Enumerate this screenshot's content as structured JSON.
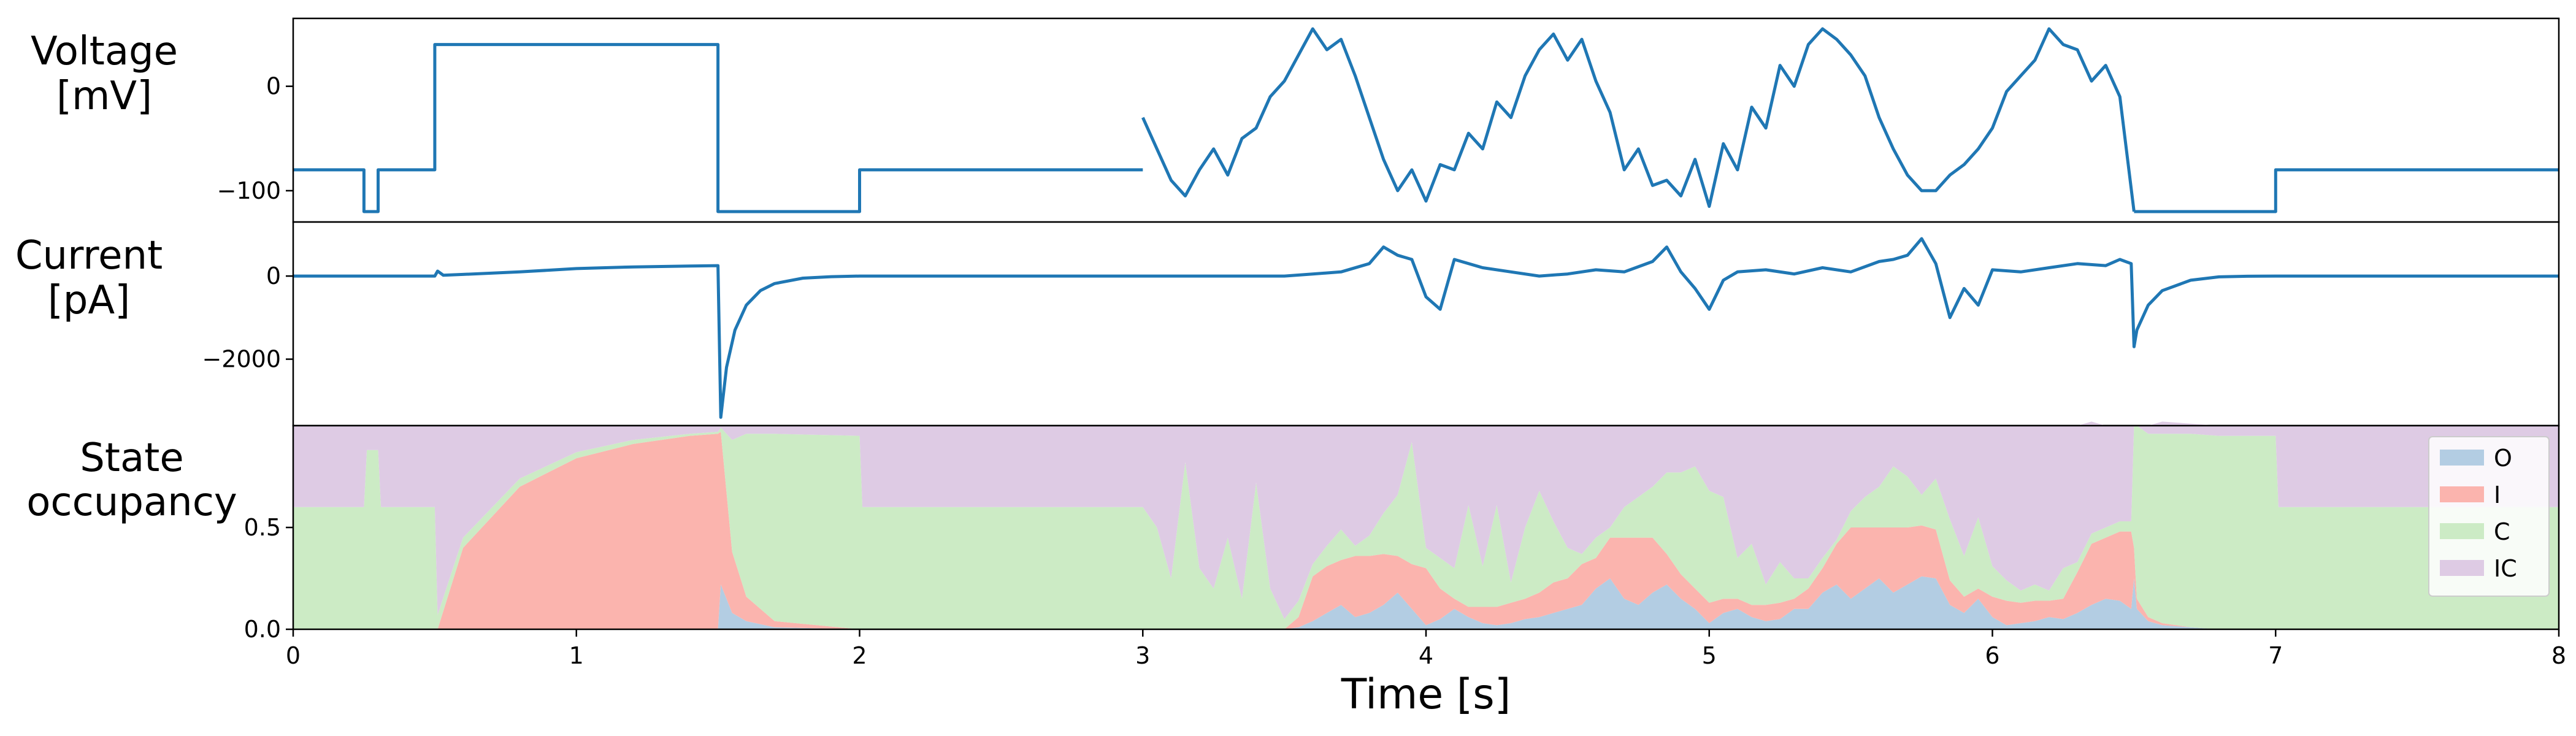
{
  "figure": {
    "xlabel": "Time [s]",
    "colors": {
      "line": "#1f77b4",
      "O": "#b3cde3",
      "I": "#fbb4ae",
      "C": "#ccebc5",
      "IC": "#decbe4"
    }
  },
  "chart_data": [
    {
      "type": "line",
      "panel": "voltage",
      "ylabel_line1": "Voltage",
      "ylabel_line2": "[mV]",
      "xlim": [
        0,
        8
      ],
      "ylim": [
        -130,
        65
      ],
      "yticks": [
        -100,
        0
      ],
      "ytick_labels": [
        "−100",
        "0"
      ],
      "grid": false,
      "series": [
        {
          "x": [
            0,
            0.25,
            0.25,
            0.3,
            0.3,
            0.5,
            0.5,
            1.5,
            1.5,
            2.0,
            2.0,
            3.0
          ],
          "y": [
            -80,
            -80,
            -120,
            -120,
            -80,
            -80,
            40,
            40,
            -120,
            -120,
            -80,
            -80
          ]
        },
        {
          "x": [
            3.0,
            3.05,
            3.1,
            3.15,
            3.2,
            3.25,
            3.3,
            3.35,
            3.4,
            3.45,
            3.5,
            3.55,
            3.6,
            3.65,
            3.7,
            3.75,
            3.8,
            3.85,
            3.9,
            3.95,
            4.0,
            4.05,
            4.1,
            4.15,
            4.2,
            4.25,
            4.3,
            4.35,
            4.4,
            4.45,
            4.5,
            4.55,
            4.6,
            4.65,
            4.7,
            4.75,
            4.8,
            4.85,
            4.9,
            4.95,
            5.0,
            5.05,
            5.1,
            5.15,
            5.2,
            5.25,
            5.3,
            5.35,
            5.4,
            5.45,
            5.5,
            5.55,
            5.6,
            5.65,
            5.7,
            5.75,
            5.8,
            5.85,
            5.9,
            5.95,
            6.0,
            6.05,
            6.1,
            6.15,
            6.2,
            6.25,
            6.3,
            6.35,
            6.4,
            6.45,
            6.5
          ],
          "y": [
            -30,
            -60,
            -90,
            -105,
            -80,
            -60,
            -85,
            -50,
            -40,
            -10,
            5,
            30,
            55,
            35,
            45,
            10,
            -30,
            -70,
            -100,
            -80,
            -110,
            -75,
            -80,
            -45,
            -60,
            -15,
            -30,
            10,
            35,
            50,
            25,
            45,
            5,
            -25,
            -80,
            -60,
            -95,
            -90,
            -105,
            -70,
            -115,
            -55,
            -80,
            -20,
            -40,
            20,
            0,
            40,
            55,
            45,
            30,
            10,
            -30,
            -60,
            -85,
            -100,
            -100,
            -85,
            -75,
            -60,
            -40,
            -5,
            10,
            25,
            55,
            40,
            35,
            5,
            20,
            -10,
            -120
          ]
        },
        {
          "x": [
            6.5,
            7.0,
            7.0,
            8.0
          ],
          "y": [
            -120,
            -120,
            -80,
            -80
          ]
        }
      ]
    },
    {
      "type": "line",
      "panel": "current",
      "ylabel_line1": "Current",
      "ylabel_line2": "[pA]",
      "xlim": [
        0,
        8
      ],
      "ylim": [
        -3600,
        1300
      ],
      "yticks": [
        -2000,
        0
      ],
      "ytick_labels": [
        "−2000",
        "0"
      ],
      "grid": false,
      "series": [
        {
          "x": [
            0,
            0.5,
            0.51,
            0.53,
            0.6,
            0.8,
            1.0,
            1.2,
            1.4,
            1.5,
            1.51,
            1.53,
            1.56,
            1.6,
            1.65,
            1.7,
            1.8,
            1.9,
            2.0,
            3.0,
            3.5,
            3.6,
            3.7,
            3.8,
            3.85,
            3.9,
            3.95,
            4.0,
            4.05,
            4.1,
            4.2,
            4.3,
            4.4,
            4.5,
            4.6,
            4.7,
            4.8,
            4.85,
            4.9,
            4.95,
            5.0,
            5.05,
            5.1,
            5.2,
            5.3,
            5.4,
            5.5,
            5.6,
            5.65,
            5.7,
            5.75,
            5.8,
            5.85,
            5.9,
            5.95,
            6.0,
            6.1,
            6.2,
            6.3,
            6.4,
            6.45,
            6.49,
            6.5,
            6.51,
            6.55,
            6.6,
            6.7,
            6.8,
            6.9,
            7.0,
            8.0
          ],
          "y": [
            0,
            0,
            120,
            20,
            40,
            100,
            180,
            220,
            240,
            250,
            -3400,
            -2200,
            -1300,
            -700,
            -350,
            -180,
            -50,
            -15,
            0,
            0,
            0,
            50,
            100,
            300,
            700,
            500,
            400,
            -500,
            -800,
            400,
            200,
            100,
            0,
            50,
            150,
            100,
            350,
            700,
            100,
            -300,
            -800,
            -100,
            100,
            150,
            50,
            200,
            100,
            350,
            400,
            500,
            900,
            300,
            -1000,
            -300,
            -700,
            150,
            100,
            200,
            300,
            250,
            400,
            300,
            -1700,
            -1300,
            -700,
            -350,
            -100,
            -20,
            -5,
            0,
            0
          ]
        }
      ]
    },
    {
      "type": "area",
      "panel": "state",
      "ylabel_line1": "State",
      "ylabel_line2": "occupancy",
      "xlim": [
        0,
        8
      ],
      "ylim": [
        0,
        1
      ],
      "yticks": [
        0.0,
        0.5
      ],
      "ytick_labels": [
        "0.0",
        "0.5"
      ],
      "xticks": [
        0,
        1,
        2,
        3,
        4,
        5,
        6,
        7,
        8
      ],
      "xtick_labels": [
        "0",
        "1",
        "2",
        "3",
        "4",
        "5",
        "6",
        "7",
        "8"
      ],
      "stacked": true,
      "grid": false,
      "legend_position": "top-right",
      "x": [
        0,
        0.25,
        0.26,
        0.3,
        0.31,
        0.5,
        0.51,
        0.6,
        0.8,
        1.0,
        1.2,
        1.4,
        1.5,
        1.51,
        1.55,
        1.6,
        1.7,
        2.0,
        2.01,
        3.0,
        3.05,
        3.1,
        3.15,
        3.2,
        3.25,
        3.3,
        3.35,
        3.4,
        3.45,
        3.5,
        3.55,
        3.6,
        3.65,
        3.7,
        3.75,
        3.8,
        3.85,
        3.9,
        3.95,
        4.0,
        4.05,
        4.1,
        4.15,
        4.2,
        4.25,
        4.3,
        4.35,
        4.4,
        4.45,
        4.5,
        4.55,
        4.6,
        4.65,
        4.7,
        4.75,
        4.8,
        4.85,
        4.9,
        4.95,
        5.0,
        5.05,
        5.1,
        5.15,
        5.2,
        5.25,
        5.3,
        5.35,
        5.4,
        5.45,
        5.5,
        5.55,
        5.6,
        5.65,
        5.7,
        5.75,
        5.8,
        5.85,
        5.9,
        5.95,
        6.0,
        6.05,
        6.1,
        6.15,
        6.2,
        6.25,
        6.3,
        6.35,
        6.4,
        6.45,
        6.49,
        6.5,
        6.51,
        6.55,
        6.6,
        6.7,
        6.8,
        6.9,
        7.0,
        7.01,
        8.0
      ],
      "series": [
        {
          "name": "O",
          "values": [
            0,
            0,
            0,
            0,
            0,
            0,
            0,
            0,
            0,
            0,
            0,
            0,
            0,
            0.22,
            0.08,
            0.04,
            0.01,
            0,
            0,
            0,
            0,
            0,
            0,
            0,
            0,
            0,
            0,
            0,
            0,
            0,
            0.01,
            0.04,
            0.08,
            0.12,
            0.06,
            0.08,
            0.12,
            0.18,
            0.1,
            0.02,
            0.05,
            0.1,
            0.06,
            0.03,
            0.02,
            0.03,
            0.05,
            0.06,
            0.08,
            0.1,
            0.12,
            0.2,
            0.25,
            0.15,
            0.12,
            0.18,
            0.22,
            0.15,
            0.1,
            0.03,
            0.08,
            0.1,
            0.06,
            0.04,
            0.05,
            0.1,
            0.1,
            0.18,
            0.22,
            0.15,
            0.2,
            0.25,
            0.18,
            0.22,
            0.26,
            0.25,
            0.12,
            0.08,
            0.15,
            0.06,
            0.02,
            0.03,
            0.04,
            0.06,
            0.05,
            0.08,
            0.12,
            0.15,
            0.14,
            0.1,
            0.25,
            0.1,
            0.04,
            0.02,
            0.01,
            0,
            0,
            0,
            0,
            0
          ]
        },
        {
          "name": "I",
          "values": [
            0,
            0,
            0,
            0,
            0,
            0,
            0,
            0.4,
            0.7,
            0.84,
            0.91,
            0.95,
            0.96,
            0.75,
            0.3,
            0.12,
            0.03,
            0,
            0,
            0,
            0,
            0,
            0,
            0,
            0,
            0,
            0,
            0,
            0,
            0,
            0.05,
            0.22,
            0.23,
            0.22,
            0.3,
            0.28,
            0.25,
            0.18,
            0.22,
            0.28,
            0.15,
            0.05,
            0.05,
            0.08,
            0.09,
            0.1,
            0.1,
            0.12,
            0.15,
            0.15,
            0.2,
            0.15,
            0.2,
            0.3,
            0.33,
            0.27,
            0.15,
            0.12,
            0.1,
            0.1,
            0.07,
            0.05,
            0.06,
            0.08,
            0.08,
            0.05,
            0.1,
            0.12,
            0.2,
            0.35,
            0.3,
            0.25,
            0.32,
            0.28,
            0.25,
            0.24,
            0.12,
            0.08,
            0.05,
            0.1,
            0.12,
            0.1,
            0.1,
            0.08,
            0.1,
            0.2,
            0.3,
            0.3,
            0.34,
            0.38,
            0.15,
            0.05,
            0.02,
            0.01,
            0,
            0,
            0,
            0,
            0,
            0
          ]
        },
        {
          "name": "C",
          "values": [
            0.6,
            0.6,
            0.88,
            0.88,
            0.6,
            0.6,
            0.07,
            0.05,
            0.04,
            0.03,
            0.02,
            0.01,
            0.01,
            0.02,
            0.55,
            0.8,
            0.92,
            0.95,
            0.6,
            0.6,
            0.5,
            0.25,
            0.82,
            0.3,
            0.2,
            0.45,
            0.15,
            0.72,
            0.2,
            0.05,
            0.08,
            0.06,
            0.1,
            0.15,
            0.05,
            0.1,
            0.2,
            0.3,
            0.6,
            0.1,
            0.15,
            0.15,
            0.5,
            0.2,
            0.5,
            0.1,
            0.35,
            0.5,
            0.3,
            0.15,
            0.05,
            0.1,
            0.05,
            0.15,
            0.2,
            0.25,
            0.4,
            0.5,
            0.6,
            0.55,
            0.5,
            0.2,
            0.3,
            0.1,
            0.2,
            0.1,
            0.05,
            0.05,
            0.02,
            0.08,
            0.15,
            0.2,
            0.3,
            0.25,
            0.15,
            0.25,
            0.3,
            0.2,
            0.35,
            0.15,
            0.1,
            0.06,
            0.08,
            0.05,
            0.15,
            0.05,
            0.05,
            0.05,
            0.05,
            0.05,
            0.6,
            0.85,
            0.9,
            0.93,
            0.95,
            0.95,
            0.95,
            0.95,
            0.6,
            0.6
          ]
        },
        {
          "name": "IC",
          "values": [
            0.4,
            0.4,
            0.12,
            0.12,
            0.4,
            0.4,
            0.93,
            0.55,
            0.26,
            0.13,
            0.07,
            0.04,
            0.03,
            0.01,
            0.07,
            0.04,
            0.04,
            0.05,
            0.4,
            0.4,
            0.5,
            0.75,
            0.18,
            0.7,
            0.8,
            0.55,
            0.85,
            0.28,
            0.8,
            0.95,
            0.86,
            0.68,
            0.59,
            0.51,
            0.59,
            0.54,
            0.43,
            0.34,
            0.08,
            0.6,
            0.65,
            0.7,
            0.39,
            0.69,
            0.39,
            0.77,
            0.5,
            0.32,
            0.47,
            0.6,
            0.63,
            0.55,
            0.5,
            0.4,
            0.35,
            0.3,
            0.23,
            0.23,
            0.2,
            0.32,
            0.35,
            0.65,
            0.58,
            0.78,
            0.67,
            0.75,
            0.75,
            0.65,
            0.56,
            0.42,
            0.35,
            0.3,
            0.2,
            0.25,
            0.34,
            0.26,
            0.46,
            0.64,
            0.45,
            0.69,
            0.76,
            0.81,
            0.78,
            0.81,
            0.7,
            0.67,
            0.55,
            0.5,
            0.47,
            0.47,
            0,
            0,
            0.04,
            0.06,
            0.05,
            0.05,
            0.05,
            0.05,
            0.4,
            0.4
          ]
        }
      ]
    }
  ]
}
